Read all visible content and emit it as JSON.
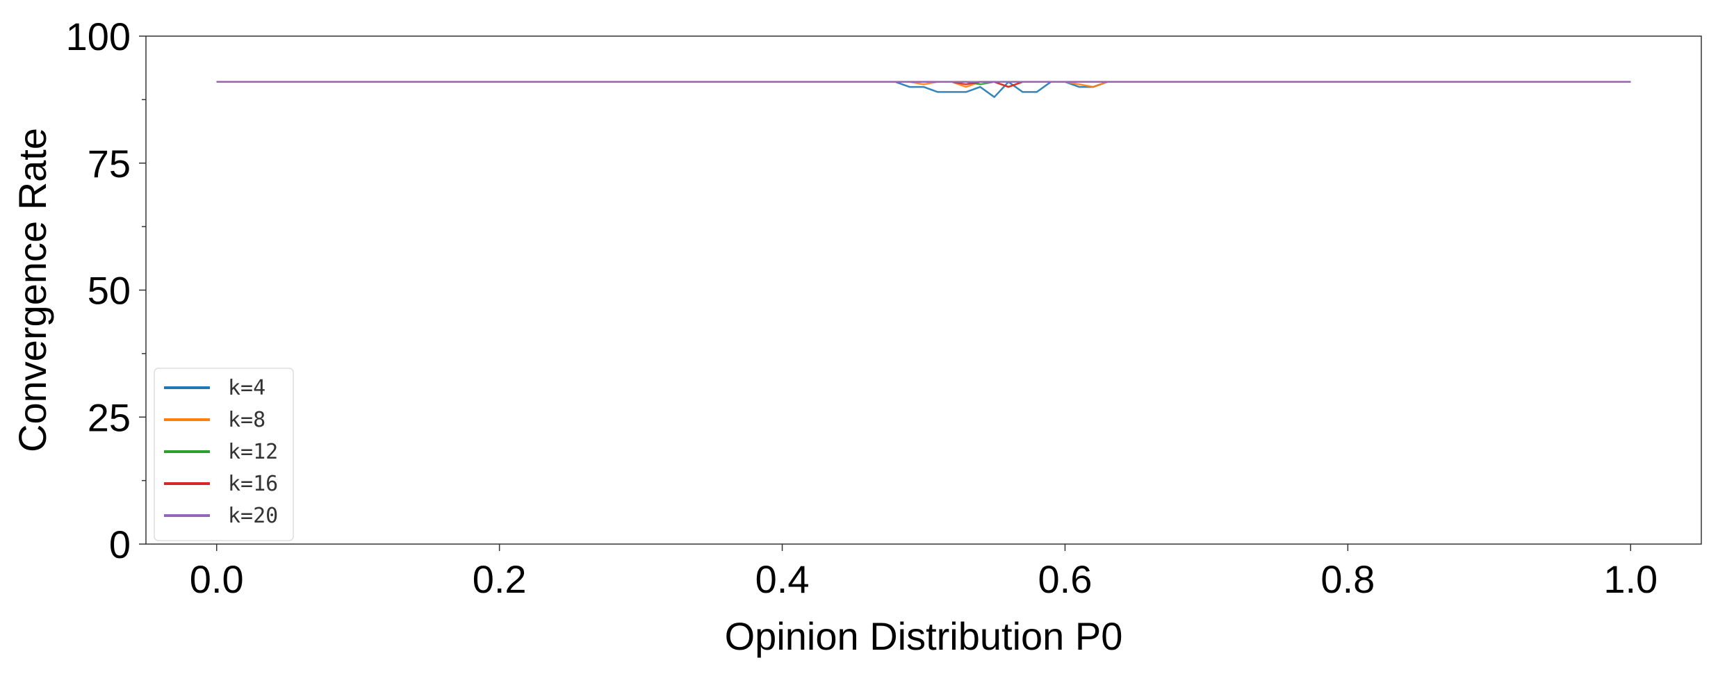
{
  "chart_data": {
    "type": "line",
    "title": "",
    "xlabel": "Opinion Distribution P0",
    "ylabel": "Convergence Rate",
    "xlim": [
      -0.05,
      1.05
    ],
    "ylim": [
      0,
      100
    ],
    "xticks": [
      "0.0",
      "0.2",
      "0.4",
      "0.6",
      "0.8",
      "1.0"
    ],
    "yticks": [
      "0",
      "25",
      "50",
      "75",
      "100"
    ],
    "grid": false,
    "legend": "bottom-left",
    "series": [
      {
        "name": "k=4",
        "color": "#1f77b4",
        "x": [
          0.0,
          0.48,
          0.49,
          0.5,
          0.51,
          0.52,
          0.53,
          0.54,
          0.55,
          0.56,
          0.57,
          0.58,
          0.59,
          0.6,
          0.61,
          0.62,
          0.63,
          1.0
        ],
        "y": [
          91,
          91,
          90,
          90,
          89,
          89,
          89,
          90,
          88,
          91,
          89,
          89,
          91,
          91,
          90,
          90,
          91,
          91
        ]
      },
      {
        "name": "k=8",
        "color": "#ff7f0e",
        "x": [
          0.0,
          0.49,
          0.5,
          0.51,
          0.52,
          0.53,
          0.54,
          0.55,
          0.56,
          0.57,
          0.58,
          0.59,
          0.6,
          0.61,
          0.62,
          0.63,
          1.0
        ],
        "y": [
          91,
          91,
          90.5,
          91,
          91,
          90,
          91,
          91,
          90,
          91,
          91,
          91,
          91,
          90.5,
          90,
          91,
          91
        ]
      },
      {
        "name": "k=12",
        "color": "#2ca02c",
        "x": [
          0.0,
          0.53,
          0.54,
          0.55,
          0.56,
          1.0
        ],
        "y": [
          91,
          91,
          90.5,
          91,
          91,
          91
        ]
      },
      {
        "name": "k=16",
        "color": "#d62728",
        "x": [
          0.0,
          0.52,
          0.53,
          0.54,
          0.55,
          0.56,
          0.57,
          1.0
        ],
        "y": [
          91,
          91,
          90.5,
          91,
          91,
          90,
          91,
          91
        ]
      },
      {
        "name": "k=20",
        "color": "#9467bd",
        "x": [
          0.0,
          1.0
        ],
        "y": [
          91,
          91
        ]
      }
    ]
  }
}
